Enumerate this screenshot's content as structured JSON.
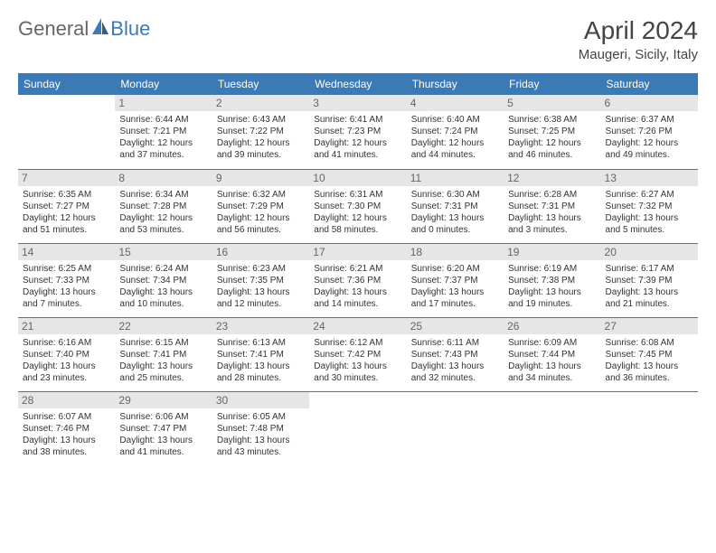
{
  "logo": {
    "text1": "General",
    "text2": "Blue"
  },
  "title": "April 2024",
  "location": "Maugeri, Sicily, Italy",
  "header_color": "#3b7ab5",
  "day_header_bg": "#e6e6e6",
  "weekdays": [
    "Sunday",
    "Monday",
    "Tuesday",
    "Wednesday",
    "Thursday",
    "Friday",
    "Saturday"
  ],
  "weeks": [
    [
      {
        "n": "",
        "sr": "",
        "ss": "",
        "dl": ""
      },
      {
        "n": "1",
        "sr": "6:44 AM",
        "ss": "7:21 PM",
        "dl": "12 hours and 37 minutes."
      },
      {
        "n": "2",
        "sr": "6:43 AM",
        "ss": "7:22 PM",
        "dl": "12 hours and 39 minutes."
      },
      {
        "n": "3",
        "sr": "6:41 AM",
        "ss": "7:23 PM",
        "dl": "12 hours and 41 minutes."
      },
      {
        "n": "4",
        "sr": "6:40 AM",
        "ss": "7:24 PM",
        "dl": "12 hours and 44 minutes."
      },
      {
        "n": "5",
        "sr": "6:38 AM",
        "ss": "7:25 PM",
        "dl": "12 hours and 46 minutes."
      },
      {
        "n": "6",
        "sr": "6:37 AM",
        "ss": "7:26 PM",
        "dl": "12 hours and 49 minutes."
      }
    ],
    [
      {
        "n": "7",
        "sr": "6:35 AM",
        "ss": "7:27 PM",
        "dl": "12 hours and 51 minutes."
      },
      {
        "n": "8",
        "sr": "6:34 AM",
        "ss": "7:28 PM",
        "dl": "12 hours and 53 minutes."
      },
      {
        "n": "9",
        "sr": "6:32 AM",
        "ss": "7:29 PM",
        "dl": "12 hours and 56 minutes."
      },
      {
        "n": "10",
        "sr": "6:31 AM",
        "ss": "7:30 PM",
        "dl": "12 hours and 58 minutes."
      },
      {
        "n": "11",
        "sr": "6:30 AM",
        "ss": "7:31 PM",
        "dl": "13 hours and 0 minutes."
      },
      {
        "n": "12",
        "sr": "6:28 AM",
        "ss": "7:31 PM",
        "dl": "13 hours and 3 minutes."
      },
      {
        "n": "13",
        "sr": "6:27 AM",
        "ss": "7:32 PM",
        "dl": "13 hours and 5 minutes."
      }
    ],
    [
      {
        "n": "14",
        "sr": "6:25 AM",
        "ss": "7:33 PM",
        "dl": "13 hours and 7 minutes."
      },
      {
        "n": "15",
        "sr": "6:24 AM",
        "ss": "7:34 PM",
        "dl": "13 hours and 10 minutes."
      },
      {
        "n": "16",
        "sr": "6:23 AM",
        "ss": "7:35 PM",
        "dl": "13 hours and 12 minutes."
      },
      {
        "n": "17",
        "sr": "6:21 AM",
        "ss": "7:36 PM",
        "dl": "13 hours and 14 minutes."
      },
      {
        "n": "18",
        "sr": "6:20 AM",
        "ss": "7:37 PM",
        "dl": "13 hours and 17 minutes."
      },
      {
        "n": "19",
        "sr": "6:19 AM",
        "ss": "7:38 PM",
        "dl": "13 hours and 19 minutes."
      },
      {
        "n": "20",
        "sr": "6:17 AM",
        "ss": "7:39 PM",
        "dl": "13 hours and 21 minutes."
      }
    ],
    [
      {
        "n": "21",
        "sr": "6:16 AM",
        "ss": "7:40 PM",
        "dl": "13 hours and 23 minutes."
      },
      {
        "n": "22",
        "sr": "6:15 AM",
        "ss": "7:41 PM",
        "dl": "13 hours and 25 minutes."
      },
      {
        "n": "23",
        "sr": "6:13 AM",
        "ss": "7:41 PM",
        "dl": "13 hours and 28 minutes."
      },
      {
        "n": "24",
        "sr": "6:12 AM",
        "ss": "7:42 PM",
        "dl": "13 hours and 30 minutes."
      },
      {
        "n": "25",
        "sr": "6:11 AM",
        "ss": "7:43 PM",
        "dl": "13 hours and 32 minutes."
      },
      {
        "n": "26",
        "sr": "6:09 AM",
        "ss": "7:44 PM",
        "dl": "13 hours and 34 minutes."
      },
      {
        "n": "27",
        "sr": "6:08 AM",
        "ss": "7:45 PM",
        "dl": "13 hours and 36 minutes."
      }
    ],
    [
      {
        "n": "28",
        "sr": "6:07 AM",
        "ss": "7:46 PM",
        "dl": "13 hours and 38 minutes."
      },
      {
        "n": "29",
        "sr": "6:06 AM",
        "ss": "7:47 PM",
        "dl": "13 hours and 41 minutes."
      },
      {
        "n": "30",
        "sr": "6:05 AM",
        "ss": "7:48 PM",
        "dl": "13 hours and 43 minutes."
      },
      {
        "n": "",
        "sr": "",
        "ss": "",
        "dl": ""
      },
      {
        "n": "",
        "sr": "",
        "ss": "",
        "dl": ""
      },
      {
        "n": "",
        "sr": "",
        "ss": "",
        "dl": ""
      },
      {
        "n": "",
        "sr": "",
        "ss": "",
        "dl": ""
      }
    ]
  ]
}
